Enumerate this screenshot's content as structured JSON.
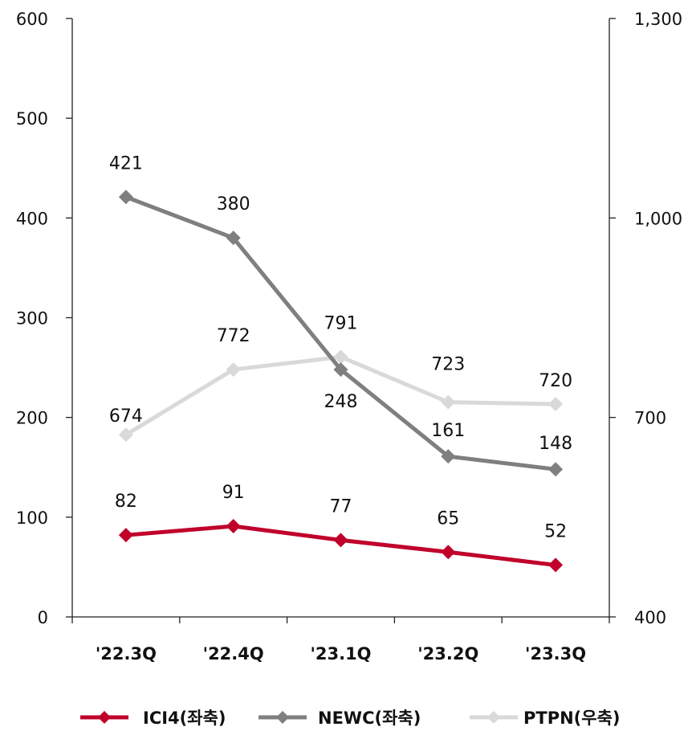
{
  "chart_data": {
    "type": "line",
    "categories": [
      "'22.3Q",
      "'22.4Q",
      "'23.1Q",
      "'23.2Q",
      "'23.3Q"
    ],
    "y_left": {
      "ylim": [
        0,
        600
      ],
      "ticks": [
        "0",
        "100",
        "200",
        "300",
        "400",
        "500",
        "600"
      ]
    },
    "y_right": {
      "ylim": [
        400,
        1300
      ],
      "ticks": [
        "400",
        "700",
        "1,000",
        "1,300"
      ]
    },
    "grid": false,
    "legend_position": "bottom",
    "series": [
      {
        "name": "ICI4(좌축)",
        "axis": "left",
        "color": "#c0002a",
        "values": [
          82,
          91,
          77,
          65,
          52
        ]
      },
      {
        "name": "NEWC(좌축)",
        "axis": "left",
        "color": "#7f7f7f",
        "values": [
          421,
          380,
          248,
          161,
          148
        ]
      },
      {
        "name": "PTPN(우축)",
        "axis": "right",
        "color": "#d9d9d9",
        "values": [
          674,
          772,
          791,
          723,
          720
        ]
      }
    ]
  }
}
